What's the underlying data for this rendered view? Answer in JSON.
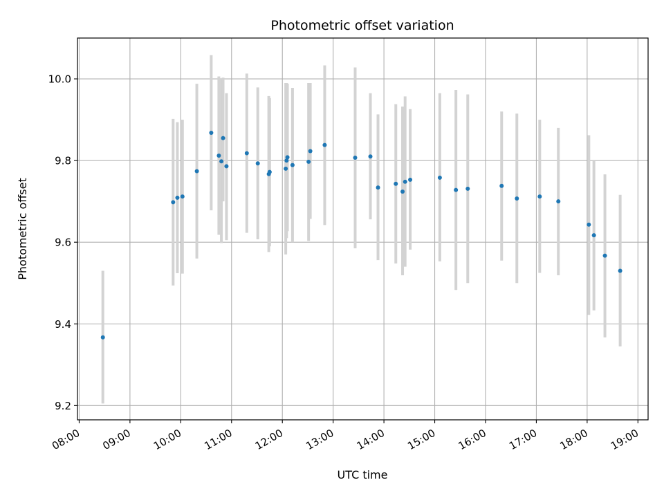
{
  "chart_data": {
    "type": "scatter",
    "title": "Photometric offset variation",
    "xlabel": "UTC time",
    "ylabel": "Photometric offset",
    "x_tick_labels": [
      "08:00",
      "09:00",
      "10:00",
      "11:00",
      "12:00",
      "13:00",
      "14:00",
      "15:00",
      "16:00",
      "17:00",
      "18:00",
      "19:00"
    ],
    "y_tick_labels": [
      "9.2",
      "9.4",
      "9.6",
      "9.8",
      "10.0"
    ],
    "y_ticks": [
      9.2,
      9.4,
      9.6,
      9.8,
      10.0
    ],
    "xlim": [
      "07:58",
      "19:12"
    ],
    "ylim": [
      9.165,
      10.1
    ],
    "grid": true,
    "point_color": "#1f77b4",
    "errorbar_color": "#d3d3d3",
    "series": [
      {
        "points": [
          {
            "x": "08:28",
            "y": 9.367,
            "low": 9.205,
            "high": 9.53
          },
          {
            "x": "09:51",
            "y": 9.698,
            "low": 9.494,
            "high": 9.902
          },
          {
            "x": "09:56",
            "y": 9.709,
            "low": 9.524,
            "high": 9.894
          },
          {
            "x": "10:02",
            "y": 9.712,
            "low": 9.523,
            "high": 9.9
          },
          {
            "x": "10:19",
            "y": 9.774,
            "low": 9.56,
            "high": 9.988
          },
          {
            "x": "10:36",
            "y": 9.868,
            "low": 9.678,
            "high": 10.058
          },
          {
            "x": "10:45",
            "y": 9.812,
            "low": 9.618,
            "high": 10.006
          },
          {
            "x": "10:48",
            "y": 9.798,
            "low": 9.598,
            "high": 10.0
          },
          {
            "x": "10:50",
            "y": 9.855,
            "low": 9.7,
            "high": 10.003
          },
          {
            "x": "10:54",
            "y": 9.786,
            "low": 9.605,
            "high": 9.965
          },
          {
            "x": "11:18",
            "y": 9.818,
            "low": 9.623,
            "high": 10.013
          },
          {
            "x": "11:31",
            "y": 9.793,
            "low": 9.607,
            "high": 9.979
          },
          {
            "x": "11:44",
            "y": 9.767,
            "low": 9.576,
            "high": 9.958
          },
          {
            "x": "11:45",
            "y": 9.772,
            "low": 9.59,
            "high": 9.953
          },
          {
            "x": "12:04",
            "y": 9.78,
            "low": 9.57,
            "high": 9.99
          },
          {
            "x": "12:05",
            "y": 9.8,
            "low": 9.61,
            "high": 9.99
          },
          {
            "x": "12:06",
            "y": 9.808,
            "low": 9.627,
            "high": 9.988
          },
          {
            "x": "12:12",
            "y": 9.789,
            "low": 9.6,
            "high": 9.978
          },
          {
            "x": "12:31",
            "y": 9.797,
            "low": 9.603,
            "high": 9.99
          },
          {
            "x": "12:33",
            "y": 9.823,
            "low": 9.657,
            "high": 9.99
          },
          {
            "x": "12:50",
            "y": 9.838,
            "low": 9.642,
            "high": 10.033
          },
          {
            "x": "13:26",
            "y": 9.807,
            "low": 9.585,
            "high": 10.028
          },
          {
            "x": "13:44",
            "y": 9.81,
            "low": 9.656,
            "high": 9.965
          },
          {
            "x": "13:53",
            "y": 9.734,
            "low": 9.556,
            "high": 9.913
          },
          {
            "x": "14:14",
            "y": 9.743,
            "low": 9.548,
            "high": 9.938
          },
          {
            "x": "14:22",
            "y": 9.724,
            "low": 9.519,
            "high": 9.932
          },
          {
            "x": "14:25",
            "y": 9.748,
            "low": 9.54,
            "high": 9.957
          },
          {
            "x": "14:31",
            "y": 9.753,
            "low": 9.582,
            "high": 9.926
          },
          {
            "x": "15:06",
            "y": 9.758,
            "low": 9.553,
            "high": 9.965
          },
          {
            "x": "15:25",
            "y": 9.728,
            "low": 9.483,
            "high": 9.973
          },
          {
            "x": "15:39",
            "y": 9.731,
            "low": 9.5,
            "high": 9.962
          },
          {
            "x": "16:19",
            "y": 9.738,
            "low": 9.555,
            "high": 9.92
          },
          {
            "x": "16:37",
            "y": 9.707,
            "low": 9.5,
            "high": 9.915
          },
          {
            "x": "17:04",
            "y": 9.712,
            "low": 9.525,
            "high": 9.9
          },
          {
            "x": "17:26",
            "y": 9.7,
            "low": 9.519,
            "high": 9.88
          },
          {
            "x": "18:02",
            "y": 9.643,
            "low": 9.422,
            "high": 9.862
          },
          {
            "x": "18:08",
            "y": 9.617,
            "low": 9.433,
            "high": 9.8
          },
          {
            "x": "18:21",
            "y": 9.567,
            "low": 9.367,
            "high": 9.766
          },
          {
            "x": "18:39",
            "y": 9.53,
            "low": 9.345,
            "high": 9.716
          }
        ]
      }
    ]
  }
}
